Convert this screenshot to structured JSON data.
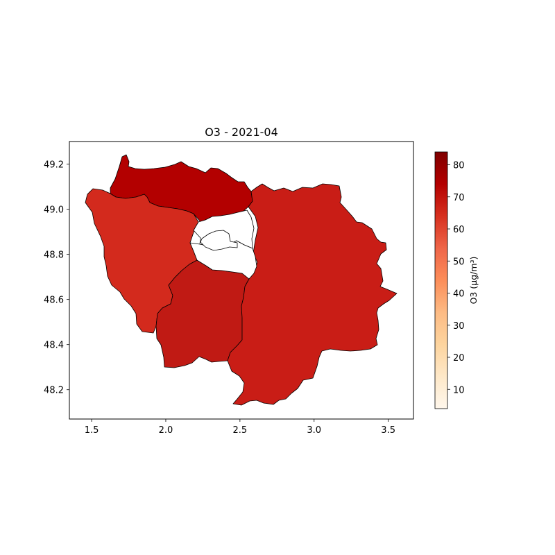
{
  "chart_data": {
    "type": "choropleth",
    "title": "O3 - 2021-04",
    "xlim": [
      1.35,
      3.67
    ],
    "ylim": [
      48.07,
      49.3
    ],
    "x_ticks": [
      1.5,
      2.0,
      2.5,
      3.0,
      3.5
    ],
    "x_tick_labels": [
      "1.5",
      "2.0",
      "2.5",
      "3.0",
      "3.5"
    ],
    "y_ticks": [
      48.2,
      48.4,
      48.6,
      48.8,
      49.0,
      49.2
    ],
    "y_tick_labels": [
      "48.2",
      "48.4",
      "48.6",
      "48.8",
      "49.0",
      "49.2"
    ],
    "colorbar": {
      "label": "O3 (µg/m³)",
      "colormap": "OrRd",
      "range": [
        4,
        84
      ],
      "ticks": [
        10,
        20,
        30,
        40,
        50,
        60,
        70,
        80
      ],
      "tick_labels": [
        "10",
        "20",
        "30",
        "40",
        "50",
        "60",
        "70",
        "80"
      ],
      "stops": [
        "#fff7ec",
        "#fee8c8",
        "#fdd49e",
        "#fdbb84",
        "#fc8d59",
        "#ef6548",
        "#d7301f",
        "#b30000",
        "#7f0000"
      ]
    },
    "regions": [
      {
        "id": "north",
        "value": 76,
        "color": "#b30000"
      },
      {
        "id": "west",
        "value": 66,
        "color": "#d32a1d"
      },
      {
        "id": "south-center",
        "value": 71,
        "color": "#c01a14"
      },
      {
        "id": "east",
        "value": 69,
        "color": "#c91d16"
      },
      {
        "id": "paris-ring-north",
        "value": null,
        "color": "#ffffff"
      },
      {
        "id": "paris-ring-south",
        "value": null,
        "color": "#ffffff"
      },
      {
        "id": "paris",
        "value": null,
        "color": "#ffffff"
      }
    ]
  }
}
